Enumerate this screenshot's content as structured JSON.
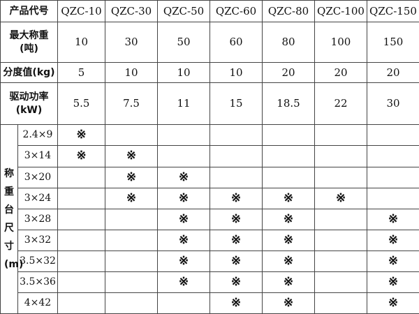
{
  "header_label": "产品代号",
  "models": [
    "QZC-10",
    "QZC-30",
    "QZC-50",
    "QZC-60",
    "QZC-80",
    "QZC-100",
    "QZC-150"
  ],
  "spec_rows": [
    {
      "label_line1": "最大称重",
      "label_line2": "(吨)",
      "values": [
        "10",
        "30",
        "50",
        "60",
        "80",
        "100",
        "150"
      ]
    },
    {
      "label_line1": "分度值(kg)",
      "label_line2": "",
      "values": [
        "5",
        "10",
        "10",
        "10",
        "20",
        "20",
        "20"
      ]
    },
    {
      "label_line1": "驱动功率",
      "label_line2": "(kW)",
      "values": [
        "5.5",
        "7.5",
        "11",
        "15",
        "18.5",
        "22",
        "30"
      ]
    }
  ],
  "platform_label": "称重台尺寸(m)",
  "platform_label_chars": [
    "称",
    "重",
    "台",
    "尺",
    "寸",
    "(m)"
  ],
  "mark_symbol": "※",
  "platform_rows": [
    {
      "size": "2.4×9",
      "marks": [
        "※",
        "",
        "",
        "",
        "",
        "",
        ""
      ]
    },
    {
      "size": "3×14",
      "marks": [
        "※",
        "※",
        "",
        "",
        "",
        "",
        ""
      ]
    },
    {
      "size": "3×20",
      "marks": [
        "",
        "※",
        "※",
        "",
        "",
        "",
        ""
      ]
    },
    {
      "size": "3×24",
      "marks": [
        "",
        "※",
        "※",
        "※",
        "※",
        "※",
        ""
      ]
    },
    {
      "size": "3×28",
      "marks": [
        "",
        "",
        "※",
        "※",
        "※",
        "",
        "※"
      ]
    },
    {
      "size": "3×32",
      "marks": [
        "",
        "",
        "※",
        "※",
        "※",
        "",
        "※"
      ]
    },
    {
      "size": "3.5×32",
      "marks": [
        "",
        "",
        "※",
        "※",
        "※",
        "",
        "※"
      ]
    },
    {
      "size": "3.5×36",
      "marks": [
        "",
        "",
        "※",
        "※",
        "※",
        "",
        "※"
      ]
    },
    {
      "size": "4×42",
      "marks": [
        "",
        "",
        "",
        "※",
        "※",
        "",
        "※"
      ]
    }
  ]
}
